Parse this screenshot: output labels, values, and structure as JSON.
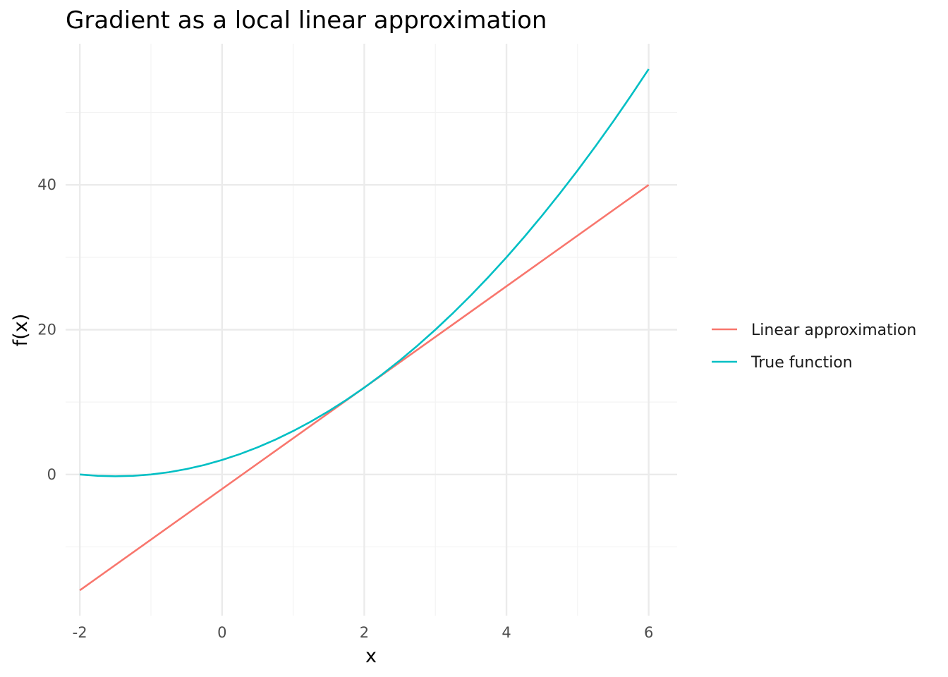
{
  "chart_data": {
    "type": "line",
    "title": "Gradient as a local linear approximation",
    "xlabel": "x",
    "ylabel": "f(x)",
    "xlim": [
      -2.2,
      6.4
    ],
    "ylim": [
      -19.5,
      59.5
    ],
    "x_ticks": [
      -2,
      0,
      2,
      4,
      6
    ],
    "x_tick_labels": [
      "-2",
      "0",
      "2",
      "4",
      "6"
    ],
    "x_minor": [
      -1,
      1,
      3,
      5
    ],
    "y_ticks": [
      0,
      20,
      40
    ],
    "y_tick_labels": [
      "0",
      "20",
      "40"
    ],
    "y_minor": [
      -10,
      10,
      30,
      50
    ],
    "grid": true,
    "legend_position": "right",
    "series": [
      {
        "name": "Linear approximation",
        "color": "#F8766D",
        "x": [
          -2,
          6
        ],
        "y": [
          -16,
          40
        ]
      },
      {
        "name": "True function",
        "color": "#00BFC4",
        "x": [
          -2,
          -1.75,
          -1.5,
          -1.25,
          -1,
          -0.75,
          -0.5,
          -0.25,
          0,
          0.25,
          0.5,
          0.75,
          1,
          1.25,
          1.5,
          1.75,
          2,
          2.25,
          2.5,
          2.75,
          3,
          3.25,
          3.5,
          3.75,
          4,
          4.25,
          4.5,
          4.75,
          5,
          5.25,
          5.5,
          5.75,
          6
        ],
        "y": [
          0,
          -0.1875,
          -0.25,
          -0.1875,
          0,
          0.3125,
          0.75,
          1.3125,
          2,
          2.8125,
          3.75,
          4.8125,
          6,
          7.3125,
          8.75,
          10.3125,
          12,
          13.8125,
          15.75,
          17.8125,
          20,
          22.3125,
          24.75,
          27.3125,
          30,
          32.8125,
          35.75,
          38.8125,
          42,
          45.3125,
          48.75,
          52.3125,
          56
        ]
      }
    ]
  }
}
